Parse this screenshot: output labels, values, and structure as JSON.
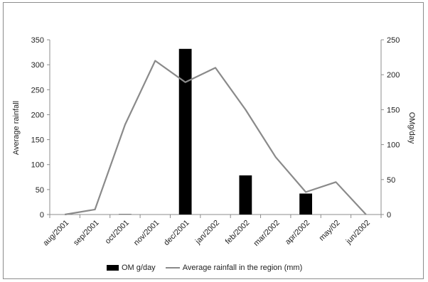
{
  "chart_data": {
    "type": "bar",
    "categories": [
      "aug/2001",
      "sep/2001",
      "oct/2001",
      "nov/2001",
      "dec/2001",
      "jan/2002",
      "feb/2002",
      "mar/2002",
      "apr/2002",
      "may/02",
      "jun/2002"
    ],
    "series": [
      {
        "name": "OM g/day",
        "type": "bar",
        "axis": "right",
        "values": [
          0,
          0,
          0.5,
          0,
          237,
          0,
          56,
          0,
          30,
          0,
          0
        ]
      },
      {
        "name": "Average rainfall in the region  (mm)",
        "type": "line",
        "axis": "left",
        "values": [
          0,
          10,
          180,
          308,
          265,
          294,
          210,
          115,
          45,
          65,
          0
        ]
      }
    ],
    "ylabel": "Average rainfall",
    "y2label": "OMg/day",
    "ylim": [
      0,
      350
    ],
    "y2lim": [
      0,
      250
    ],
    "yticks": [
      "0",
      "50",
      "100",
      "150",
      "200",
      "250",
      "300",
      "350"
    ],
    "y2ticks": [
      "0",
      "50",
      "100",
      "150",
      "200",
      "250"
    ],
    "grid": false,
    "legend_position": "bottom",
    "colors": {
      "bar": "#000000",
      "line": "#8a8a8a",
      "axis": "#8c8c8c"
    }
  }
}
